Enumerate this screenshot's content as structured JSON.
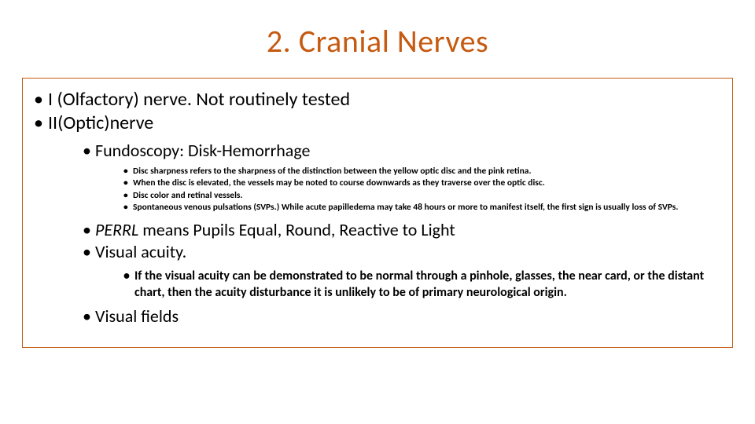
{
  "colors": {
    "title_color": "#c55a11",
    "box_border": "#c55a11",
    "text_color": "#000000",
    "background": "#ffffff"
  },
  "title": "2. Cranial Nerves",
  "bullets": {
    "l1_a": "I (Olfactory) nerve. Not routinely tested",
    "l1_b": "II(Optic)nerve",
    "l2_fundoscopy": "Fundoscopy: Disk-Hemorrhage",
    "l3_disc_sharp": "Disc sharpness refers to the sharpness of the distinction between the yellow optic disc and the pink retina.",
    "l3_disc_elev": "When the disc is elevated, the vessels may be noted to course downwards as they traverse over the optic disc.",
    "l3_disc_color": "Disc color and retinal vessels.",
    "l3_svp": "Spontaneous venous pulsations (SVPs.) While acute papilledema may take 48 hours or more to manifest itself, the first sign is usually loss of SVPs.",
    "l2_perrl_italic": "PERRL",
    "l2_perrl_rest": " means Pupils Equal, Round, Reactive to Light",
    "l2_acuity": "Visual acuity.",
    "l3_acuity_detail": "If the visual acuity can be demonstrated to be normal through a pinhole, glasses, the near card, or the distant chart, then the acuity disturbance it is unlikely to be of primary neurological origin.",
    "l2_fields": "Visual fields"
  }
}
